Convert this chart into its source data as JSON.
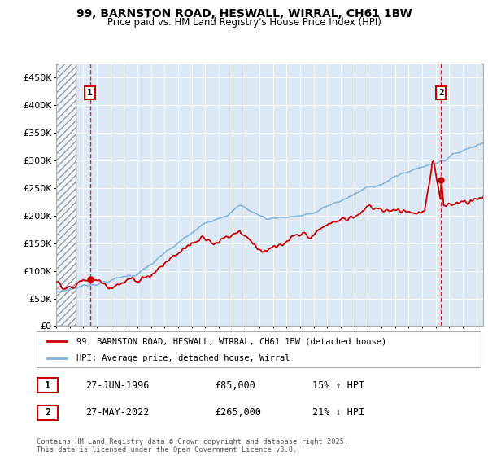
{
  "title_line1": "99, BARNSTON ROAD, HESWALL, WIRRAL, CH61 1BW",
  "title_line2": "Price paid vs. HM Land Registry's House Price Index (HPI)",
  "ylim": [
    0,
    475000
  ],
  "yticks": [
    0,
    50000,
    100000,
    150000,
    200000,
    250000,
    300000,
    350000,
    400000,
    450000
  ],
  "ytick_labels": [
    "£0",
    "£50K",
    "£100K",
    "£150K",
    "£200K",
    "£250K",
    "£300K",
    "£350K",
    "£400K",
    "£450K"
  ],
  "background_color": "#ffffff",
  "plot_bg_color": "#dce9f5",
  "grid_color": "#ffffff",
  "red_line_color": "#cc0000",
  "blue_line_color": "#7fb3d9",
  "sale1_t": 1996.49,
  "sale1_y": 85000,
  "sale2_t": 2022.4,
  "sale2_y": 265000,
  "annotation1_label": "1",
  "annotation2_label": "2",
  "legend_label1": "99, BARNSTON ROAD, HESWALL, WIRRAL, CH61 1BW (detached house)",
  "legend_label2": "HPI: Average price, detached house, Wirral",
  "sale1_date": "27-JUN-1996",
  "sale1_price": "£85,000",
  "sale1_hpi": "15% ↑ HPI",
  "sale2_date": "27-MAY-2022",
  "sale2_price": "£265,000",
  "sale2_hpi": "21% ↓ HPI",
  "copyright_text": "Contains HM Land Registry data © Crown copyright and database right 2025.\nThis data is licensed under the Open Government Licence v3.0.",
  "xmin": 1994.0,
  "xmax": 2025.5,
  "hatch_end": 1995.5
}
